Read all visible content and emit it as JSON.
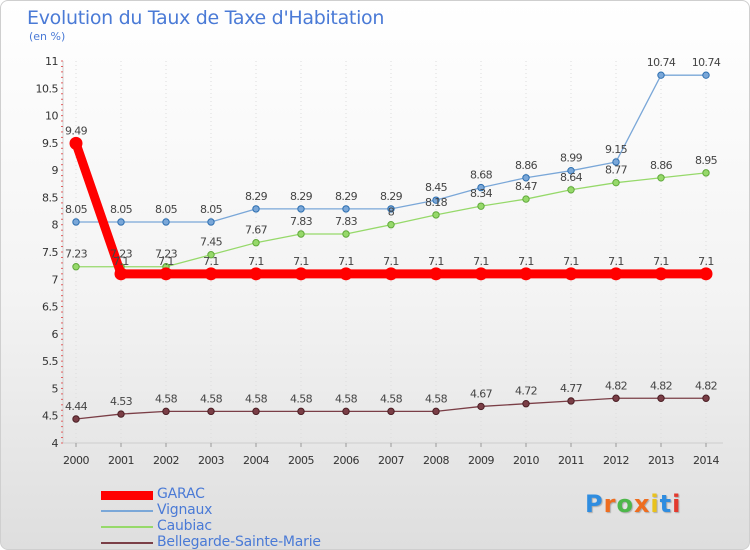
{
  "header": {
    "title": "Evolution du Taux de Taxe d'Habitation",
    "subtitle": "(en %)"
  },
  "brand": {
    "letters": [
      "P",
      "r",
      "o",
      "x",
      "i",
      "t",
      "i"
    ],
    "colors": [
      "#2f8de0",
      "#ee6d1f",
      "#4db74a",
      "#ee6d1f",
      "#e9c21d",
      "#2f8de0",
      "#e33a2e"
    ]
  },
  "chart_data": {
    "type": "line",
    "title": "Evolution du Taux de Taxe d'Habitation",
    "subtitle": "(en %)",
    "xlabel": "",
    "ylabel": "",
    "x": [
      "2000",
      "2001",
      "2002",
      "2003",
      "2004",
      "2005",
      "2006",
      "2007",
      "2008",
      "2009",
      "2010",
      "2011",
      "2012",
      "2013",
      "2014"
    ],
    "ylim": [
      4,
      11
    ],
    "yticks": [
      "4",
      "4.5",
      "5",
      "5.5",
      "6",
      "6.5",
      "7",
      "7.5",
      "8",
      "8.5",
      "9",
      "9.5",
      "10",
      "10.5",
      "11"
    ],
    "grid": "vertical",
    "legend": "bottom-left",
    "series": [
      {
        "name": "GARAC",
        "color": "#ff0000",
        "values": [
          9.49,
          7.1,
          7.1,
          7.1,
          7.1,
          7.1,
          7.1,
          7.1,
          7.1,
          7.1,
          7.1,
          7.1,
          7.1,
          7.1,
          7.1
        ],
        "labels": [
          "9.49",
          "7.1",
          "7.1",
          "7.1",
          "7.1",
          "7.1",
          "7.1",
          "7.1",
          "7.1",
          "7.1",
          "7.1",
          "7.1",
          "7.1",
          "7.1",
          "7.1"
        ]
      },
      {
        "name": "Vignaux",
        "color": "#7aa7d8",
        "values": [
          8.05,
          8.05,
          8.05,
          8.05,
          8.29,
          8.29,
          8.29,
          8.29,
          8.45,
          8.68,
          8.86,
          8.99,
          9.15,
          10.74,
          10.74
        ],
        "labels": [
          "8.05",
          "8.05",
          "8.05",
          "8.05",
          "8.29",
          "8.29",
          "8.29",
          "8.29",
          "8.45",
          "8.68",
          "8.86",
          "8.99",
          "9.15",
          "10.74",
          "10.74"
        ]
      },
      {
        "name": "Caubiac",
        "color": "#96d96a",
        "values": [
          7.23,
          7.23,
          7.23,
          7.45,
          7.67,
          7.83,
          7.83,
          8,
          8.18,
          8.34,
          8.47,
          8.64,
          8.77,
          8.86,
          8.95
        ],
        "labels": [
          "7.23",
          "7.23",
          "7.23",
          "7.45",
          "7.67",
          "7.83",
          "7.83",
          "8",
          "8.18",
          "8.34",
          "8.47",
          "8.64",
          "8.77",
          "8.86",
          "8.95"
        ]
      },
      {
        "name": "Bellegarde-Sainte-Marie",
        "color": "#7a3e46",
        "values": [
          4.44,
          4.53,
          4.58,
          4.58,
          4.58,
          4.58,
          4.58,
          4.58,
          4.58,
          4.67,
          4.72,
          4.77,
          4.82,
          4.82,
          4.82
        ],
        "labels": [
          "4.44",
          "4.53",
          "4.58",
          "4.58",
          "4.58",
          "4.58",
          "4.58",
          "4.58",
          "4.58",
          "4.67",
          "4.72",
          "4.77",
          "4.82",
          "4.82",
          "4.82"
        ]
      }
    ]
  }
}
